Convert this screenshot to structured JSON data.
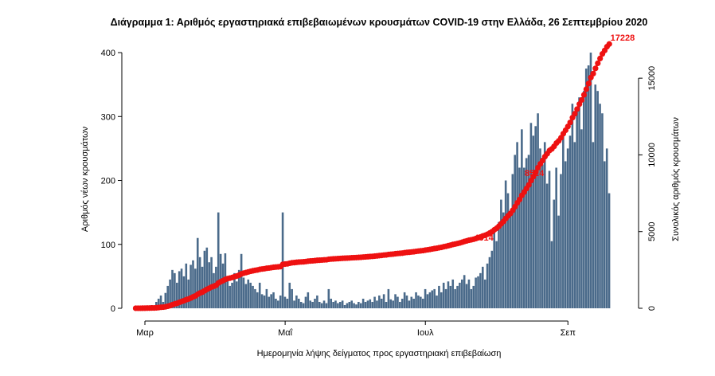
{
  "chart_data": {
    "type": "bar+line",
    "title": "Διάγραμμα 1: Αριθμός εργαστηριακά επιβεβαιωμένων κρουσμάτων COVID-19 στην Ελλάδα, 26 Σεπτεμβρίου 2020",
    "xlabel": "Ημερομηνία λήψης δείγματος προς εργαστηριακή επιβεβαίωση",
    "ylabel_left": "Αριθμός νέων κρουσμάτων",
    "ylabel_right": "Συνολικός αριθμός κρουσμάτων",
    "x_ticks": [
      {
        "label": "Μαρ",
        "date": "2020-03-01"
      },
      {
        "label": "Μαΐ",
        "date": "2020-05-01"
      },
      {
        "label": "Ιουλ",
        "date": "2020-07-01"
      },
      {
        "label": "Σεπ",
        "date": "2020-09-01"
      }
    ],
    "x_range": [
      "2020-02-26",
      "2020-09-25"
    ],
    "y_left_ticks": [
      "0",
      "100",
      "200",
      "300",
      "400"
    ],
    "y_left_range": [
      0,
      420
    ],
    "y_right_ticks": [
      "0",
      "5000",
      "10000",
      "15000"
    ],
    "y_right_range": [
      0,
      17500
    ],
    "bar_color": "#4a6a8a",
    "line_color": "#ee1111",
    "daily_values": [
      2,
      0,
      1,
      2,
      3,
      4,
      2,
      5,
      3,
      10,
      15,
      20,
      10,
      24,
      35,
      45,
      60,
      55,
      40,
      58,
      62,
      50,
      70,
      45,
      68,
      75,
      62,
      110,
      80,
      65,
      90,
      95,
      72,
      80,
      55,
      65,
      150,
      85,
      70,
      86,
      50,
      35,
      40,
      55,
      42,
      60,
      85,
      48,
      38,
      45,
      40,
      35,
      30,
      25,
      40,
      22,
      20,
      30,
      18,
      22,
      25,
      15,
      12,
      20,
      150,
      18,
      15,
      40,
      30,
      12,
      20,
      15,
      10,
      8,
      18,
      25,
      12,
      10,
      15,
      20,
      10,
      8,
      12,
      8,
      30,
      15,
      10,
      12,
      8,
      10,
      12,
      5,
      8,
      10,
      12,
      8,
      6,
      10,
      8,
      15,
      10,
      12,
      14,
      10,
      18,
      12,
      20,
      15,
      22,
      10,
      30,
      14,
      12,
      22,
      18,
      10,
      15,
      25,
      20,
      12,
      18,
      15,
      25,
      20,
      18,
      15,
      30,
      22,
      25,
      28,
      30,
      20,
      35,
      25,
      40,
      30,
      42,
      35,
      45,
      30,
      35,
      40,
      45,
      52,
      38,
      45,
      30,
      35,
      48,
      50,
      55,
      65,
      45,
      70,
      80,
      90,
      125,
      105,
      135,
      170,
      150,
      200,
      180,
      150,
      210,
      240,
      260,
      220,
      280,
      220,
      235,
      240,
      290,
      270,
      285,
      305,
      250,
      225,
      260,
      195,
      215,
      105,
      170,
      220,
      145,
      210,
      270,
      230,
      250,
      270,
      320,
      260,
      310,
      330,
      280,
      340,
      375,
      380,
      400,
      260,
      350,
      340,
      320,
      305,
      230,
      250,
      180
    ],
    "annotations": [
      {
        "label": "4314",
        "value": 4314,
        "date": "2020-08-01"
      },
      {
        "label": "8524",
        "value": 8524,
        "date": "2020-08-23"
      },
      {
        "label": "17228",
        "value": 17228,
        "date": "2020-09-25"
      }
    ]
  }
}
